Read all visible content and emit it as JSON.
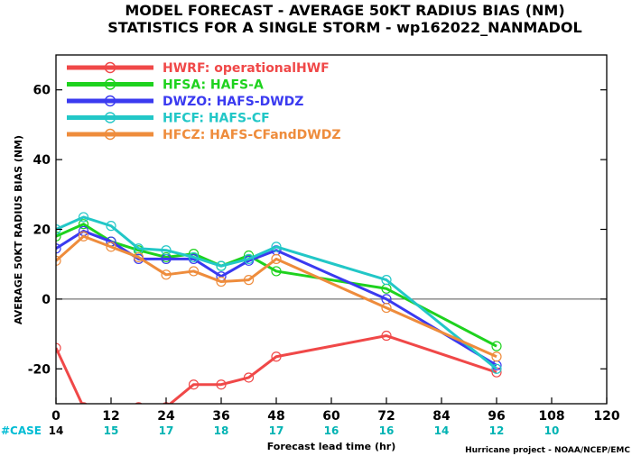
{
  "chart_data": {
    "type": "line",
    "title": "MODEL FORECAST - AVERAGE 50KT RADIUS BIAS (NM)",
    "subtitle": "STATISTICS FOR A SINGLE STORM - wp162022_NANMADOL",
    "xlabel": "Forecast lead time (hr)",
    "ylabel": "AVERAGE 50KT RADIUS BIAS (NM)",
    "xlim": [
      0,
      120
    ],
    "ylim": [
      -30,
      70
    ],
    "x_ticks": [
      0,
      12,
      24,
      36,
      48,
      60,
      72,
      84,
      96,
      108,
      120
    ],
    "y_ticks": [
      -20,
      0,
      20,
      40,
      60
    ],
    "grid": false,
    "zero_line": true,
    "legend_placement": "top-left",
    "case_label": "#CASE",
    "case_colors": {
      "label": "#00bcd4",
      "first": "#000000",
      "rest": "#00b3b3"
    },
    "cases": [
      {
        "x": 0,
        "n": "14"
      },
      {
        "x": 12,
        "n": "15"
      },
      {
        "x": 24,
        "n": "17"
      },
      {
        "x": 36,
        "n": "18"
      },
      {
        "x": 48,
        "n": "17"
      },
      {
        "x": 60,
        "n": "16"
      },
      {
        "x": 72,
        "n": "16"
      },
      {
        "x": 84,
        "n": "14"
      },
      {
        "x": 96,
        "n": "12"
      },
      {
        "x": 108,
        "n": "10"
      }
    ],
    "series": [
      {
        "name": "HWRF: operationalHWF",
        "color": "#f04848",
        "x": [
          0,
          6,
          18,
          24,
          30,
          36,
          42,
          48,
          72,
          96
        ],
        "y": [
          -14,
          -31,
          -31,
          -31,
          -24.5,
          -24.5,
          -22.5,
          -16.5,
          -10.5,
          -21
        ]
      },
      {
        "name": "HFSA: HAFS-A",
        "color": "#1ed21e",
        "x": [
          0,
          6,
          12,
          18,
          24,
          30,
          36,
          42,
          48,
          72,
          96
        ],
        "y": [
          18,
          21.5,
          16.5,
          14,
          12,
          13,
          9.5,
          12.5,
          8,
          3,
          -13.5
        ]
      },
      {
        "name": "DWZO: HAFS-DWDZ",
        "color": "#3a3af0",
        "x": [
          0,
          6,
          12,
          18,
          24,
          30,
          36,
          42,
          48,
          72,
          96
        ],
        "y": [
          14.5,
          19.5,
          16.5,
          11.5,
          11.5,
          11.5,
          6.5,
          11,
          14,
          0,
          -19
        ]
      },
      {
        "name": "HFCF: HAFS-CF",
        "color": "#22c7c7",
        "x": [
          0,
          6,
          12,
          18,
          24,
          30,
          36,
          42,
          48,
          72,
          96
        ],
        "y": [
          20,
          23.5,
          21,
          14.5,
          14,
          12,
          9.5,
          11.5,
          15,
          5.5,
          -20
        ]
      },
      {
        "name": "HFCZ: HAFS-CFandDWDZ",
        "color": "#ee8c3c",
        "x": [
          0,
          6,
          12,
          18,
          24,
          30,
          36,
          42,
          48,
          72,
          96
        ],
        "y": [
          11,
          18,
          15,
          12,
          7,
          8,
          5,
          5.5,
          11.5,
          -2.5,
          -16.5
        ]
      }
    ],
    "credit": "Hurricane project - NOAA/NCEP/EMC"
  }
}
